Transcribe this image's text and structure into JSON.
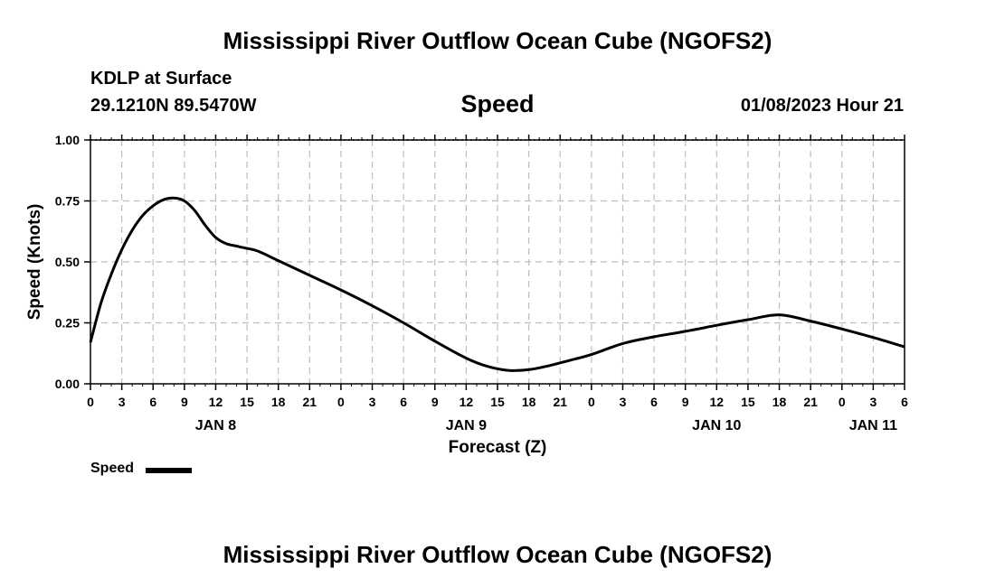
{
  "page": {
    "title": "Mississippi River Outflow Ocean Cube (NGOFS2)",
    "station_name": "KDLP at Surface",
    "station_coords": "29.1210N  89.5470W",
    "variable_title": "Speed",
    "datetime": "01/08/2023 Hour 21",
    "footer_title": "Mississippi River Outflow Ocean Cube (NGOFS2)"
  },
  "chart_data": {
    "type": "line",
    "title": "Speed",
    "xlabel": "Forecast (Z)",
    "ylabel": "Speed (Knots)",
    "x_unit": "hours from 00Z Jan 8, 2023",
    "xlim": [
      0,
      78
    ],
    "ylim": [
      0,
      1
    ],
    "grid": true,
    "x_tick_labels": [
      "0",
      "3",
      "6",
      "9",
      "12",
      "15",
      "18",
      "21",
      "0",
      "3",
      "6",
      "9",
      "12",
      "15",
      "18",
      "21",
      "0",
      "3",
      "6",
      "9",
      "12",
      "15",
      "18",
      "21",
      "0",
      "3",
      "6"
    ],
    "y_tick_labels": [
      "0.00",
      "0.25",
      "0.50",
      "0.75",
      "1.00"
    ],
    "y_ticks": [
      0,
      0.25,
      0.5,
      0.75,
      1.0
    ],
    "date_labels": [
      {
        "hour": 12,
        "label": "JAN 8"
      },
      {
        "hour": 36,
        "label": "JAN 9"
      },
      {
        "hour": 60,
        "label": "JAN 10"
      },
      {
        "hour": 75,
        "label": "JAN 11"
      }
    ],
    "legend_position": "bottom-left",
    "series": [
      {
        "name": "Speed",
        "color": "#000000",
        "x": [
          0,
          1,
          2,
          3,
          4,
          5,
          6,
          7,
          8,
          9,
          10,
          11,
          12,
          13,
          14,
          15,
          16,
          18,
          21,
          24,
          27,
          30,
          33,
          36,
          38,
          40,
          42,
          44,
          46,
          48,
          51,
          54,
          57,
          60,
          63,
          66,
          69,
          72,
          75,
          78
        ],
        "values": [
          0.17,
          0.33,
          0.45,
          0.55,
          0.63,
          0.69,
          0.73,
          0.755,
          0.762,
          0.75,
          0.71,
          0.65,
          0.6,
          0.575,
          0.565,
          0.555,
          0.545,
          0.505,
          0.445,
          0.385,
          0.32,
          0.25,
          0.175,
          0.105,
          0.072,
          0.055,
          0.058,
          0.075,
          0.097,
          0.12,
          0.165,
          0.193,
          0.215,
          0.24,
          0.263,
          0.283,
          0.257,
          0.225,
          0.19,
          0.152
        ]
      }
    ]
  },
  "legend": {
    "label": "Speed"
  }
}
